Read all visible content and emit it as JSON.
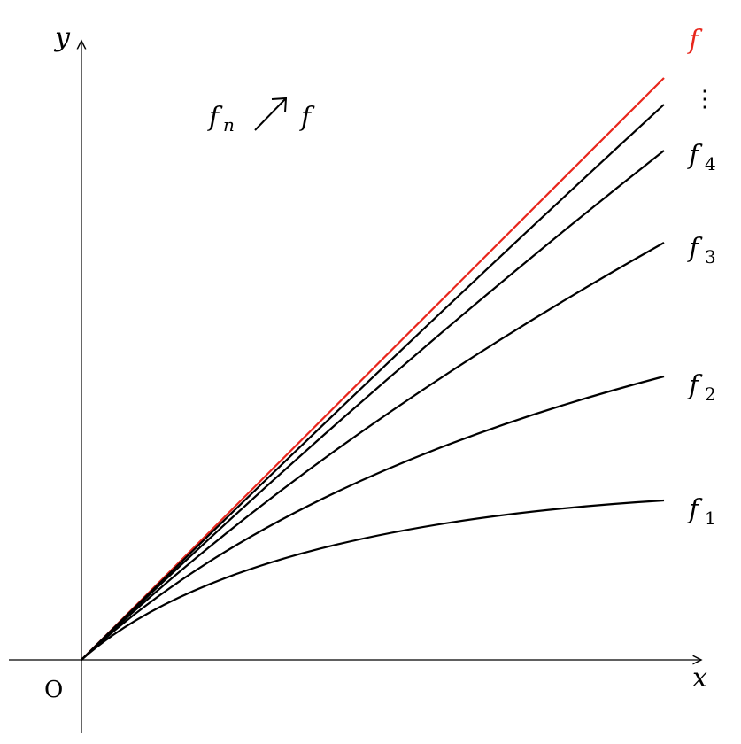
{
  "axes": {
    "x_label": "x",
    "y_label": "y",
    "origin_label": "O"
  },
  "annotation": {
    "lhs": "f",
    "lhs_sub": "n",
    "arrow": "↗",
    "rhs": "f"
  },
  "curves": [
    {
      "name": "f",
      "sub": "",
      "color": "#e8261c"
    },
    {
      "name": "⋮",
      "sub": "",
      "color": "#000000"
    },
    {
      "name": "f",
      "sub": "4",
      "color": "#000000"
    },
    {
      "name": "f",
      "sub": "3",
      "color": "#000000"
    },
    {
      "name": "f",
      "sub": "2",
      "color": "#000000"
    },
    {
      "name": "f",
      "sub": "1",
      "color": "#000000"
    }
  ]
}
